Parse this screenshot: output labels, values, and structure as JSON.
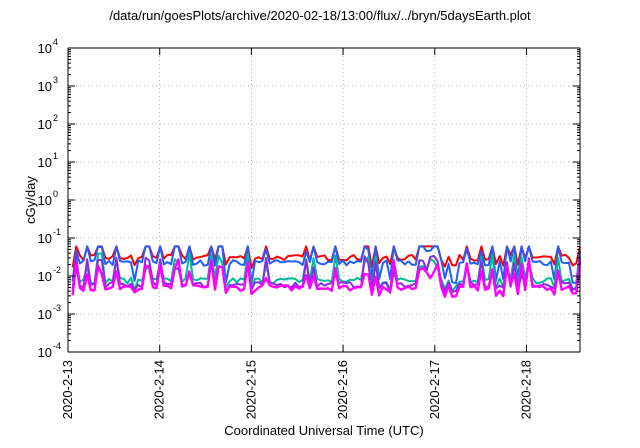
{
  "title": "/data/run/goesPlots/archive/2020-02-18/13:00/flux/../bryn/5daysEarth.plot",
  "chart_data": {
    "type": "line",
    "title": "/data/run/goesPlots/archive/2020-02-18/13:00/flux/../bryn/5daysEarth.plot",
    "xlabel": "Coordinated Universal Time (UTC)",
    "ylabel": "cGy/day",
    "y_scale": "log",
    "ylim": [
      0.0001,
      10000
    ],
    "y_ticks": [
      {
        "base": "10",
        "exp": "-4"
      },
      {
        "base": "10",
        "exp": "-3"
      },
      {
        "base": "10",
        "exp": "-2"
      },
      {
        "base": "10",
        "exp": "-1"
      },
      {
        "base": "10",
        "exp": "0"
      },
      {
        "base": "10",
        "exp": "1"
      },
      {
        "base": "10",
        "exp": "2"
      },
      {
        "base": "10",
        "exp": "3"
      },
      {
        "base": "10",
        "exp": "4"
      }
    ],
    "xlim": [
      "2020-2-13",
      "2020-2-18 14:00"
    ],
    "x_ticks": [
      "2020-2-13",
      "2020-2-14",
      "2020-2-15",
      "2020-2-16",
      "2020-2-17",
      "2020-2-18"
    ],
    "grid": true,
    "series": [
      {
        "color": "#ff0000",
        "baseline": 0.03,
        "spike_high": 0.06,
        "dip_low": 0.02,
        "samples": 140
      },
      {
        "color": "#1f5fff",
        "baseline": 0.022,
        "spike_high": 0.06,
        "dip_low": 0.008,
        "samples": 140
      },
      {
        "color": "#00b894",
        "baseline": 0.0075,
        "spike_high": 0.045,
        "dip_low": 0.005,
        "samples": 140
      },
      {
        "color": "#8a2be2",
        "baseline": 0.0058,
        "spike_high": 0.04,
        "dip_low": 0.0045,
        "samples": 140
      },
      {
        "color": "#ff00ff",
        "baseline": 0.0048,
        "spike_high": 0.04,
        "dip_low": 0.0035,
        "samples": 140
      }
    ]
  }
}
